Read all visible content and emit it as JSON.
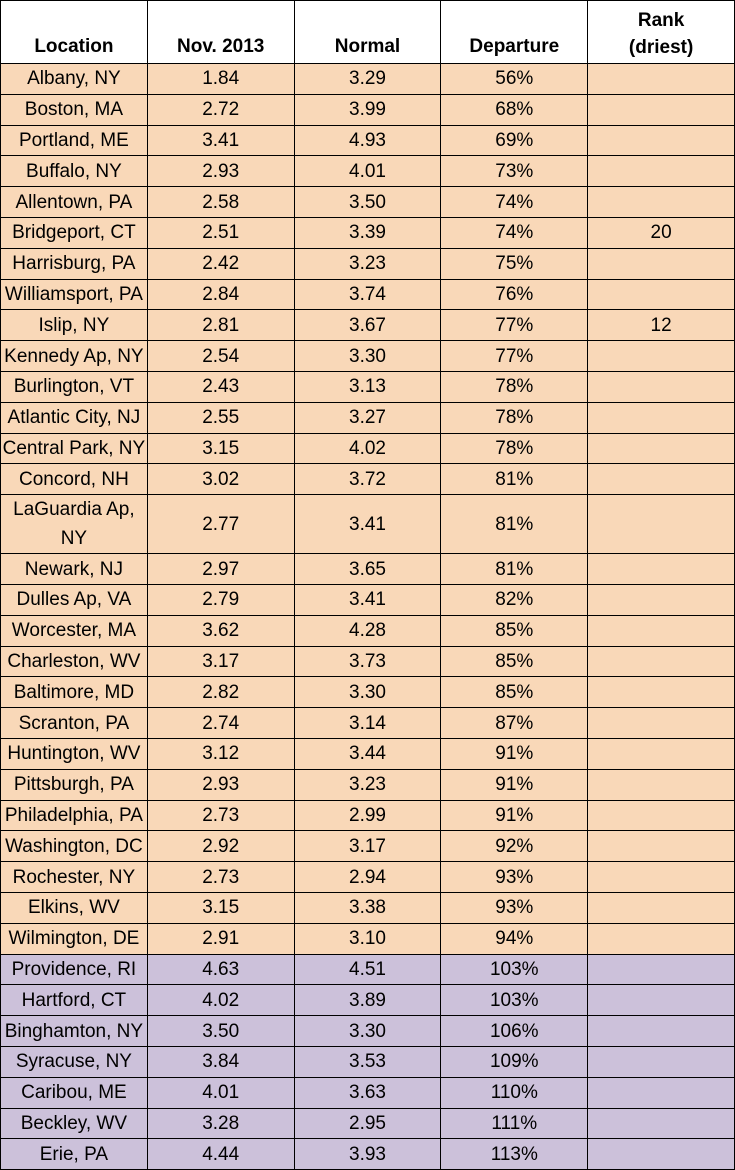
{
  "table": {
    "headers": [
      "Location",
      "Nov. 2013",
      "Normal",
      "Departure",
      "Rank (driest)"
    ],
    "rows": [
      [
        "Albany, NY",
        "1.84",
        "3.29",
        "56%"
      ],
      [
        "Boston, MA",
        "2.72",
        "3.99",
        "68%"
      ],
      [
        "Portland, ME",
        "3.41",
        "4.93",
        "69%"
      ],
      [
        "Buffalo, NY",
        "2.93",
        "4.01",
        "73%"
      ],
      [
        "Allentown, PA",
        "2.58",
        "3.50",
        "74%"
      ],
      [
        "Bridgeport, CT",
        "2.51",
        "3.39",
        "74%",
        "20"
      ],
      [
        "Harrisburg, PA",
        "2.42",
        "3.23",
        "75%"
      ],
      [
        "Williamsport, PA",
        "2.84",
        "3.74",
        "76%"
      ],
      [
        "Islip, NY",
        "2.81",
        "3.67",
        "77%",
        "12"
      ],
      [
        "Kennedy Ap, NY",
        "2.54",
        "3.30",
        "77%"
      ],
      [
        "Burlington, VT",
        "2.43",
        "3.13",
        "78%"
      ],
      [
        "Atlantic City, NJ",
        "2.55",
        "3.27",
        "78%"
      ],
      [
        "Central Park, NY",
        "3.15",
        "4.02",
        "78%"
      ],
      [
        "Concord, NH",
        "3.02",
        "3.72",
        "81%"
      ],
      [
        "LaGuardia Ap, NY",
        "2.77",
        "3.41",
        "81%"
      ],
      [
        "Newark, NJ",
        "2.97",
        "3.65",
        "81%"
      ],
      [
        "Dulles Ap, VA",
        "2.79",
        "3.41",
        "82%"
      ],
      [
        "Worcester, MA",
        "3.62",
        "4.28",
        "85%"
      ],
      [
        "Charleston, WV",
        "3.17",
        "3.73",
        "85%"
      ],
      [
        "Baltimore, MD",
        "2.82",
        "3.30",
        "85%"
      ],
      [
        "Scranton, PA",
        "2.74",
        "3.14",
        "87%"
      ],
      [
        "Huntington, WV",
        "3.12",
        "3.44",
        "91%"
      ],
      [
        "Pittsburgh, PA",
        "2.93",
        "3.23",
        "91%"
      ],
      [
        "Philadelphia, PA",
        "2.73",
        "2.99",
        "91%"
      ],
      [
        "Washington, DC",
        "2.92",
        "3.17",
        "92%"
      ],
      [
        "Rochester, NY",
        "2.73",
        "2.94",
        "93%"
      ],
      [
        "Elkins, WV",
        "3.15",
        "3.38",
        "93%"
      ],
      [
        "Wilmington, DE",
        "2.91",
        "3.10",
        "94%"
      ],
      [
        "Providence, RI",
        "4.63",
        "4.51",
        "103%"
      ],
      [
        "Hartford, CT",
        "4.02",
        "3.89",
        "103%"
      ],
      [
        "Binghamton, NY",
        "3.50",
        "3.30",
        "106%"
      ],
      [
        "Syracuse, NY",
        "3.84",
        "3.53",
        "109%"
      ],
      [
        "Caribou, ME",
        "4.01",
        "3.63",
        "110%"
      ],
      [
        "Beckley, WV",
        "3.28",
        "2.95",
        "111%"
      ],
      [
        "Erie, PA",
        "4.44",
        "3.93",
        "113%"
      ]
    ]
  }
}
